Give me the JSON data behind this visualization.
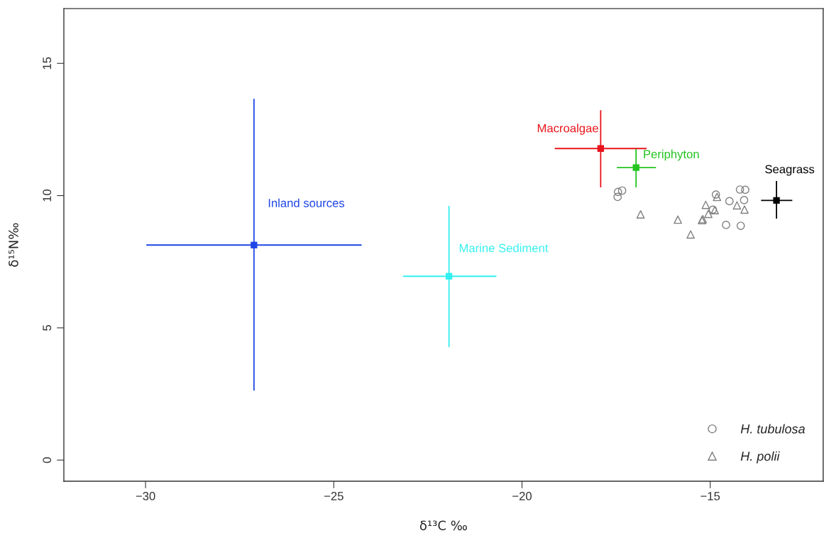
{
  "chart_data": {
    "type": "scatter",
    "xlabel": "δ¹³C ‰",
    "ylabel": "δ¹⁵N‰",
    "xlim": [
      -32.17,
      -12.0
    ],
    "ylim": [
      -0.8,
      17.07
    ],
    "xticks": [
      {
        "value": -30,
        "label": "−30"
      },
      {
        "value": -25,
        "label": "−25"
      },
      {
        "value": -20,
        "label": "−20"
      },
      {
        "value": -15,
        "label": "−15"
      }
    ],
    "yticks": [
      0,
      5,
      10,
      15
    ],
    "grid": false,
    "legend": "bottom right",
    "series": [
      {
        "name": "Inland sources",
        "color": "#1f45e6",
        "marker": "square",
        "x": [
          -27.12
        ],
        "values": [
          8.13
        ],
        "errors": [
          [
            2.63,
            13.66
          ]
        ],
        "xerrors": [
          [
            -29.98,
            -24.26
          ]
        ]
      },
      {
        "name": "Marine Sediment",
        "color": "#33f0f0",
        "marker": "square",
        "x": [
          -21.94
        ],
        "values": [
          6.95
        ],
        "errors": [
          [
            4.27,
            9.61
          ]
        ],
        "xerrors": [
          [
            -23.16,
            -20.68
          ]
        ]
      },
      {
        "name": "Macroalgae",
        "color": "#e8141b",
        "marker": "square",
        "x": [
          -17.91
        ],
        "values": [
          11.78
        ],
        "errors": [
          [
            10.31,
            13.23
          ]
        ],
        "xerrors": [
          [
            -19.13,
            -16.69
          ]
        ]
      },
      {
        "name": "Periphyton",
        "color": "#22c41e",
        "marker": "square",
        "x": [
          -16.97
        ],
        "values": [
          11.06
        ],
        "errors": [
          [
            10.31,
            11.76
          ]
        ],
        "xerrors": [
          [
            -17.48,
            -16.44
          ]
        ]
      },
      {
        "name": "Seagrass",
        "color": "#000000",
        "marker": "square",
        "x": [
          -13.24
        ],
        "values": [
          9.82
        ],
        "errors": [
          [
            9.13,
            10.55
          ]
        ],
        "xerrors": [
          [
            -13.65,
            -12.82
          ]
        ]
      },
      {
        "name": "H. tubulosa",
        "color": "#7f7f7f",
        "marker": "circle",
        "x": [
          -17.46,
          -17.45,
          -17.34,
          -14.85,
          -14.49,
          -14.21,
          -14.07,
          -14.1,
          -14.93,
          -14.58,
          -14.19
        ],
        "values": [
          9.95,
          10.14,
          10.19,
          10.04,
          9.79,
          10.23,
          10.22,
          9.83,
          9.47,
          8.89,
          8.86
        ]
      },
      {
        "name": "H. polii",
        "color": "#7f7f7f",
        "marker": "triangle",
        "x": [
          -16.85,
          -15.86,
          -15.52,
          -15.22,
          -15.2,
          -15.05,
          -15.12,
          -14.88,
          -14.82,
          -14.29,
          -14.09
        ],
        "values": [
          9.29,
          9.09,
          8.53,
          9.07,
          9.11,
          9.31,
          9.65,
          9.45,
          9.95,
          9.63,
          9.47
        ]
      }
    ]
  }
}
